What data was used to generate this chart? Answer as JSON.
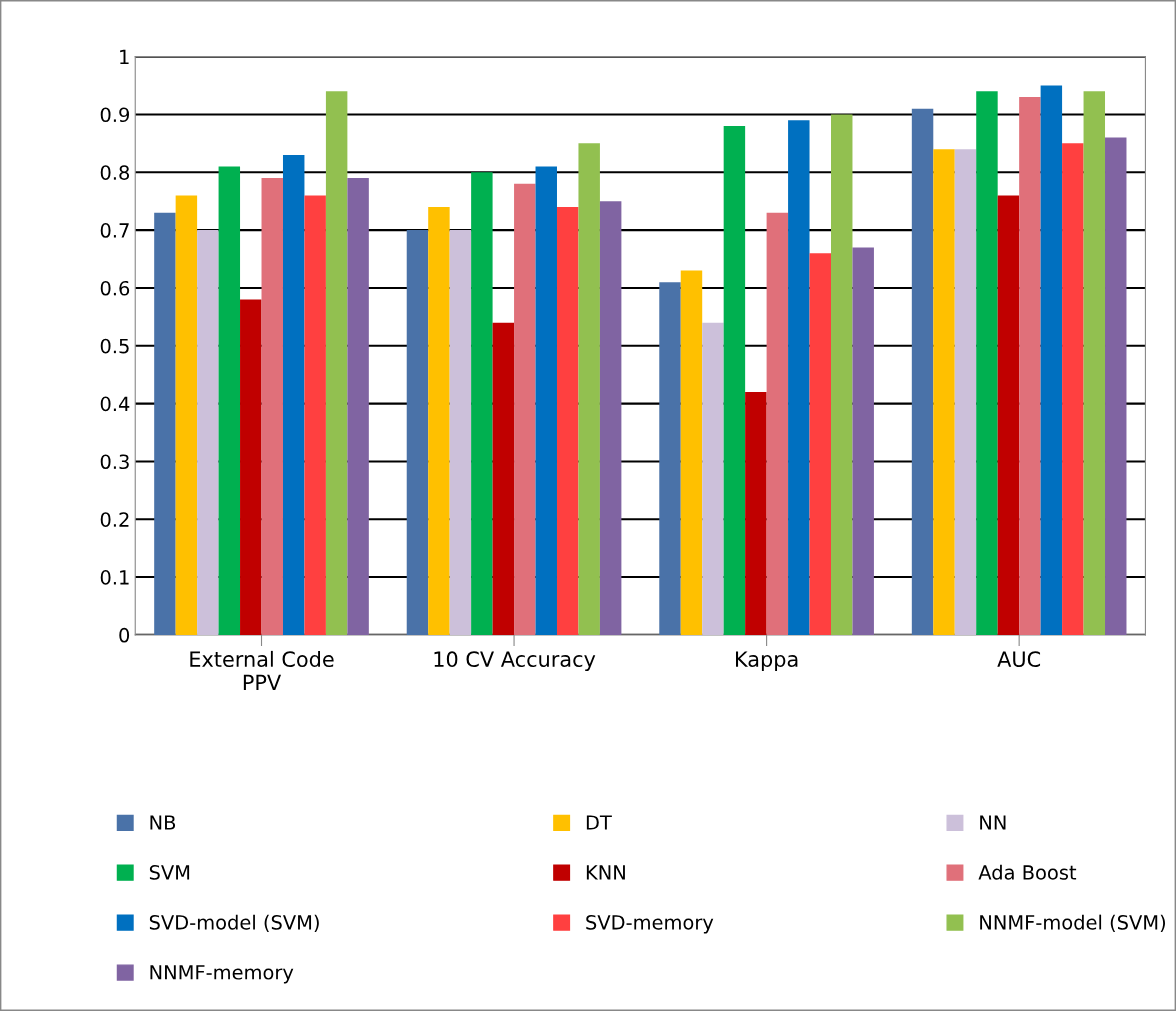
{
  "chart_data": {
    "type": "bar",
    "categories": [
      "External Code\nPPV",
      "10 CV Accuracy",
      "Kappa",
      "AUC"
    ],
    "series": [
      {
        "name": "NB",
        "color": "#4a72a8",
        "values": [
          0.73,
          0.7,
          0.61,
          0.91
        ]
      },
      {
        "name": "DT",
        "color": "#ffc000",
        "values": [
          0.76,
          0.74,
          0.63,
          0.84
        ]
      },
      {
        "name": "NN",
        "color": "#ccc0da",
        "values": [
          0.7,
          0.7,
          0.54,
          0.84
        ]
      },
      {
        "name": "SVM",
        "color": "#00b050",
        "values": [
          0.81,
          0.8,
          0.88,
          0.94
        ]
      },
      {
        "name": "KNN",
        "color": "#c00000",
        "values": [
          0.58,
          0.54,
          0.42,
          0.76
        ]
      },
      {
        "name": "Ada Boost",
        "color": "#e0707a",
        "values": [
          0.79,
          0.78,
          0.73,
          0.93
        ]
      },
      {
        "name": "SVD-model (SVM)",
        "color": "#0070c0",
        "values": [
          0.83,
          0.81,
          0.89,
          0.95
        ]
      },
      {
        "name": "SVD-memory",
        "color": "#ff4040",
        "values": [
          0.76,
          0.74,
          0.66,
          0.85
        ]
      },
      {
        "name": "NNMF-model (SVM)",
        "color": "#92c050",
        "values": [
          0.94,
          0.85,
          0.9,
          0.94
        ]
      },
      {
        "name": "NNMF-memory",
        "color": "#8064a2",
        "values": [
          0.79,
          0.75,
          0.67,
          0.86
        ]
      }
    ],
    "ylim": [
      0,
      1
    ],
    "yticks": [
      0,
      0.1,
      0.2,
      0.3,
      0.4,
      0.5,
      0.6,
      0.7,
      0.8,
      0.9,
      1
    ],
    "grid": "y",
    "legend": "bottom"
  }
}
